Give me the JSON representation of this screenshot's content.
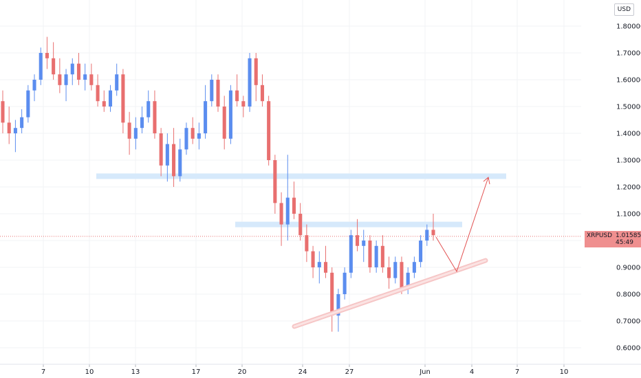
{
  "currency_label": "USD",
  "price_tag": {
    "symbol": "XRPUSD",
    "price": "1.01585",
    "countdown": "45:49",
    "color": "#ef8f8f"
  },
  "colors": {
    "up": "#5b8def",
    "down": "#e86f6f",
    "zone": "#d6e9fb",
    "trend": "#f6c6c6",
    "arrow": "#e25050"
  },
  "chart_data": {
    "type": "candlestick",
    "symbol": "XRPUSD",
    "ylim": [
      0.55,
      1.85
    ],
    "y_ticks": [
      "0.60000",
      "0.70000",
      "0.80000",
      "0.90000",
      "1.00000",
      "1.10000",
      "1.20000",
      "1.30000",
      "1.40000",
      "1.50000",
      "1.60000",
      "1.70000",
      "1.80000"
    ],
    "x_ticks": [
      "7",
      "10",
      "13",
      "17",
      "20",
      "24",
      "27",
      "Jun",
      "4",
      "7",
      "10"
    ],
    "current_price": 1.01585,
    "candles": [
      [
        1.52,
        1.56,
        1.4,
        1.44
      ],
      [
        1.44,
        1.5,
        1.36,
        1.4
      ],
      [
        1.4,
        1.45,
        1.33,
        1.42
      ],
      [
        1.42,
        1.49,
        1.4,
        1.46
      ],
      [
        1.46,
        1.58,
        1.44,
        1.56
      ],
      [
        1.56,
        1.62,
        1.52,
        1.6
      ],
      [
        1.6,
        1.72,
        1.58,
        1.7
      ],
      [
        1.7,
        1.76,
        1.64,
        1.68
      ],
      [
        1.68,
        1.74,
        1.6,
        1.62
      ],
      [
        1.62,
        1.68,
        1.55,
        1.58
      ],
      [
        1.58,
        1.64,
        1.52,
        1.62
      ],
      [
        1.62,
        1.68,
        1.58,
        1.66
      ],
      [
        1.66,
        1.7,
        1.58,
        1.6
      ],
      [
        1.6,
        1.66,
        1.56,
        1.62
      ],
      [
        1.62,
        1.66,
        1.56,
        1.58
      ],
      [
        1.58,
        1.62,
        1.5,
        1.52
      ],
      [
        1.52,
        1.56,
        1.48,
        1.5
      ],
      [
        1.5,
        1.58,
        1.48,
        1.56
      ],
      [
        1.56,
        1.66,
        1.54,
        1.62
      ],
      [
        1.62,
        1.64,
        1.4,
        1.44
      ],
      [
        1.44,
        1.48,
        1.32,
        1.38
      ],
      [
        1.38,
        1.46,
        1.34,
        1.42
      ],
      [
        1.42,
        1.5,
        1.4,
        1.46
      ],
      [
        1.46,
        1.56,
        1.44,
        1.52
      ],
      [
        1.52,
        1.56,
        1.38,
        1.4
      ],
      [
        1.4,
        1.42,
        1.24,
        1.28
      ],
      [
        1.28,
        1.4,
        1.22,
        1.36
      ],
      [
        1.36,
        1.42,
        1.2,
        1.24
      ],
      [
        1.24,
        1.38,
        1.22,
        1.34
      ],
      [
        1.34,
        1.44,
        1.32,
        1.42
      ],
      [
        1.42,
        1.46,
        1.36,
        1.38
      ],
      [
        1.38,
        1.44,
        1.34,
        1.4
      ],
      [
        1.4,
        1.58,
        1.38,
        1.52
      ],
      [
        1.52,
        1.62,
        1.5,
        1.6
      ],
      [
        1.6,
        1.62,
        1.48,
        1.5
      ],
      [
        1.5,
        1.54,
        1.34,
        1.38
      ],
      [
        1.38,
        1.58,
        1.36,
        1.56
      ],
      [
        1.56,
        1.62,
        1.5,
        1.52
      ],
      [
        1.52,
        1.54,
        1.46,
        1.5
      ],
      [
        1.5,
        1.7,
        1.48,
        1.68
      ],
      [
        1.68,
        1.7,
        1.52,
        1.58
      ],
      [
        1.58,
        1.62,
        1.5,
        1.52
      ],
      [
        1.52,
        1.54,
        1.28,
        1.3
      ],
      [
        1.3,
        1.32,
        1.1,
        1.14
      ],
      [
        1.14,
        1.18,
        0.98,
        1.06
      ],
      [
        1.06,
        1.32,
        1.0,
        1.16
      ],
      [
        1.16,
        1.22,
        1.08,
        1.1
      ],
      [
        1.1,
        1.14,
        1.0,
        1.02
      ],
      [
        1.02,
        1.06,
        0.92,
        0.96
      ],
      [
        0.96,
        0.98,
        0.86,
        0.9
      ],
      [
        0.9,
        0.96,
        0.84,
        0.92
      ],
      [
        0.92,
        0.98,
        0.86,
        0.88
      ],
      [
        0.88,
        0.9,
        0.66,
        0.72
      ],
      [
        0.72,
        0.82,
        0.66,
        0.8
      ],
      [
        0.8,
        0.9,
        0.78,
        0.88
      ],
      [
        0.88,
        1.04,
        0.86,
        1.02
      ],
      [
        1.02,
        1.08,
        0.96,
        0.98
      ],
      [
        0.98,
        1.04,
        0.92,
        1.0
      ],
      [
        1.0,
        1.02,
        0.88,
        0.9
      ],
      [
        0.9,
        1.0,
        0.88,
        0.98
      ],
      [
        0.98,
        1.02,
        0.88,
        0.9
      ],
      [
        0.9,
        0.94,
        0.82,
        0.86
      ],
      [
        0.86,
        0.94,
        0.84,
        0.92
      ],
      [
        0.92,
        0.94,
        0.8,
        0.82
      ],
      [
        0.82,
        0.9,
        0.8,
        0.88
      ],
      [
        0.88,
        0.94,
        0.86,
        0.92
      ],
      [
        0.92,
        1.02,
        0.9,
        1.0
      ],
      [
        1.0,
        1.06,
        0.98,
        1.04
      ],
      [
        1.04,
        1.1,
        1.0,
        1.02
      ]
    ],
    "annotations": [
      {
        "type": "horizontal-zone",
        "label": "",
        "price": 1.24,
        "color": "#d6e9fb"
      },
      {
        "type": "horizontal-zone",
        "label": "",
        "price": 1.06,
        "color": "#d6e9fb"
      },
      {
        "type": "trend-line",
        "from": [
          "24",
          0.68
        ],
        "to": [
          "6",
          0.93
        ],
        "color": "#f6c6c6"
      },
      {
        "type": "projection-arrow",
        "path": [
          [
            "Jun",
            0.99
          ],
          [
            "4",
            0.88
          ],
          [
            "5",
            1.24
          ]
        ],
        "color": "#e25050"
      }
    ]
  }
}
